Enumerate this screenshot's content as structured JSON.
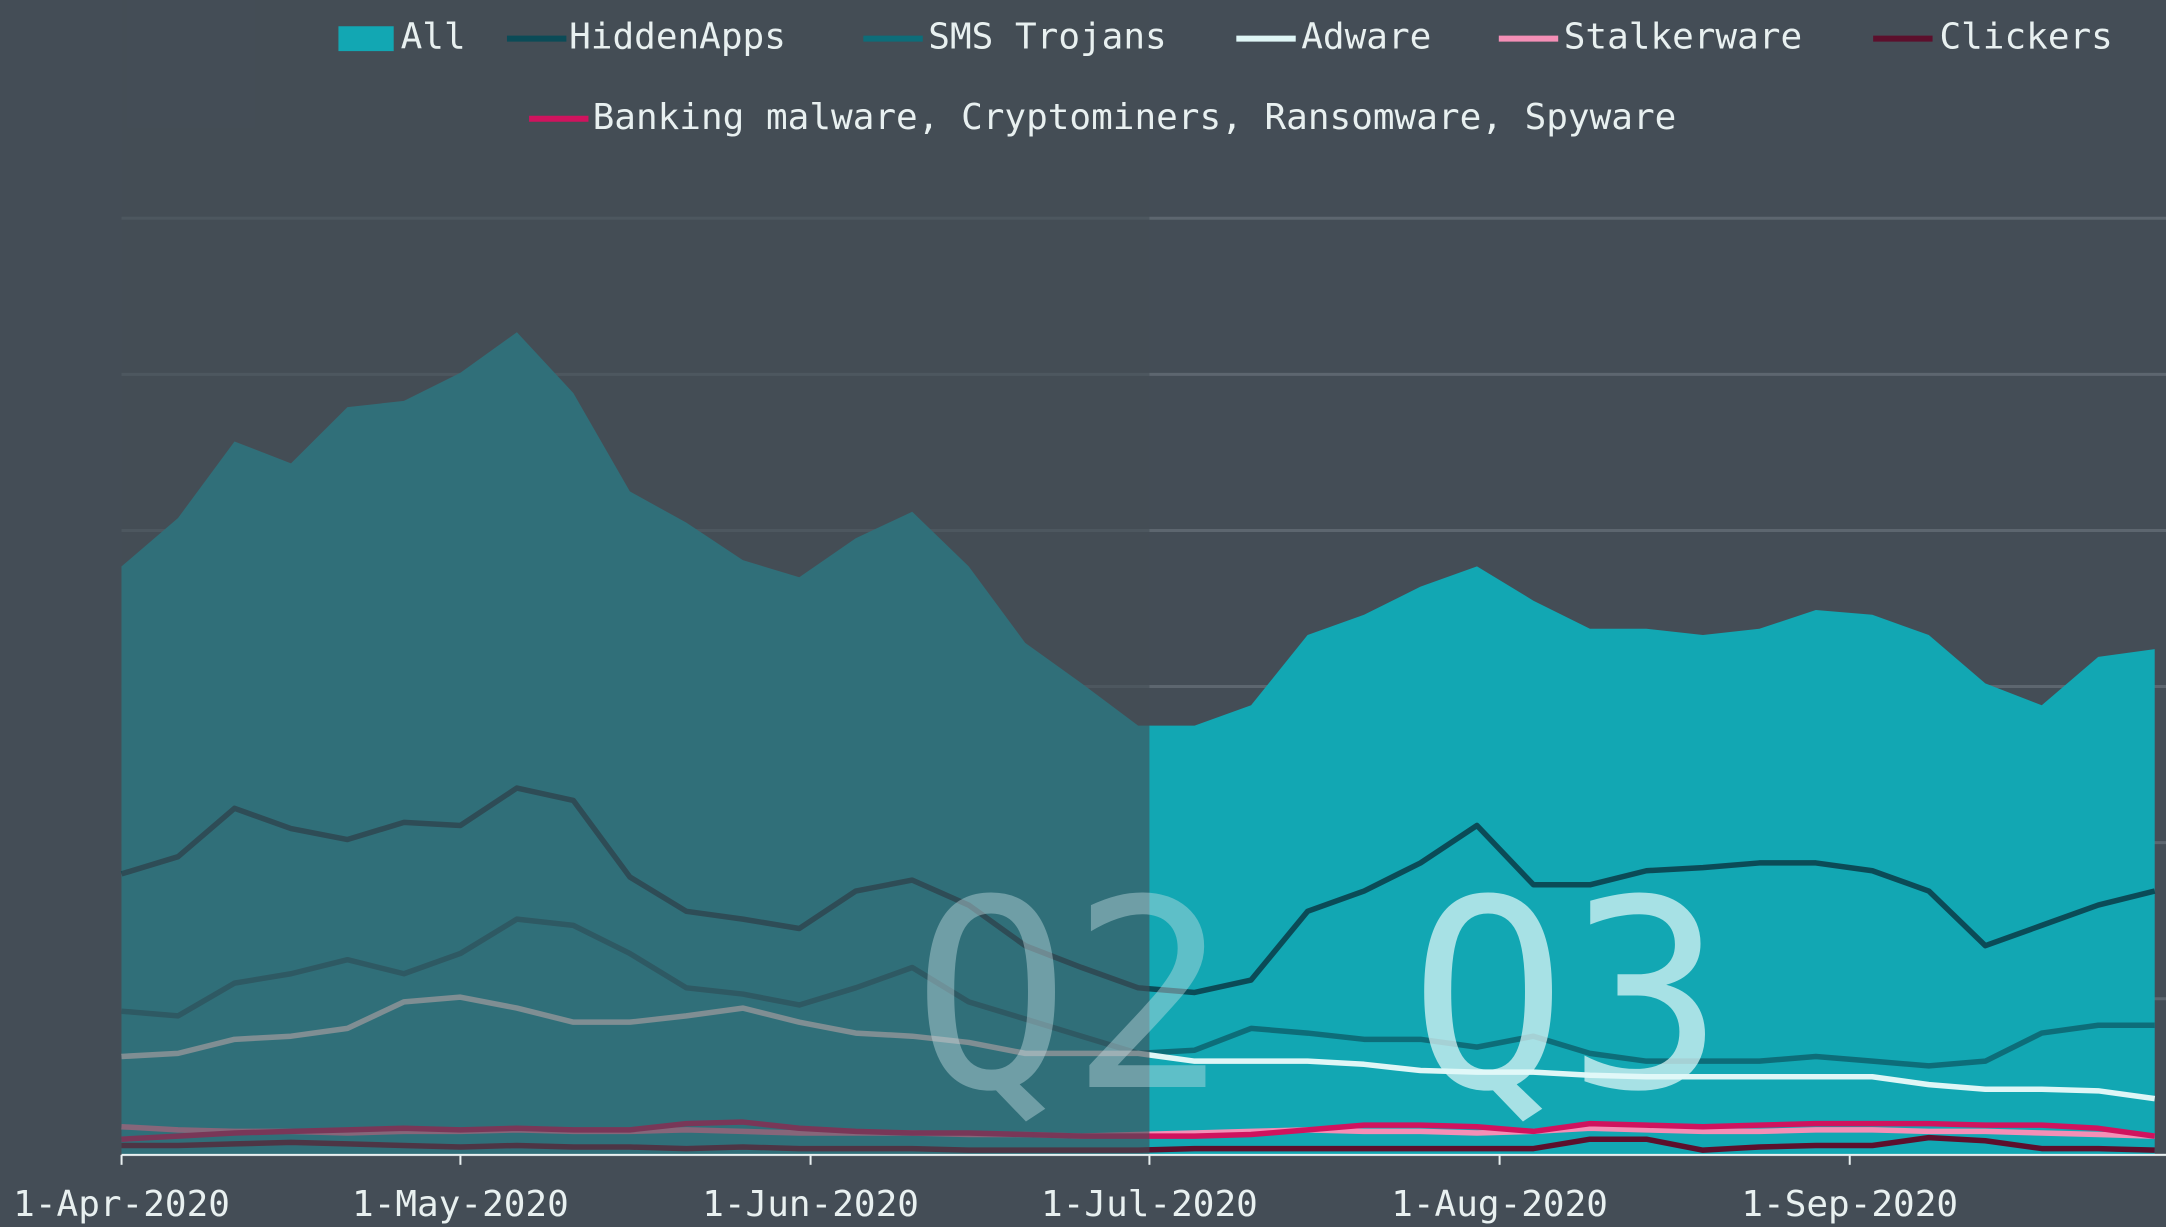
{
  "chart_data": {
    "type": "area",
    "x": [
      "2020-04-01",
      "2020-04-06",
      "2020-04-11",
      "2020-04-16",
      "2020-04-21",
      "2020-04-26",
      "2020-05-01",
      "2020-05-06",
      "2020-05-11",
      "2020-05-16",
      "2020-05-21",
      "2020-05-26",
      "2020-05-31",
      "2020-06-05",
      "2020-06-10",
      "2020-06-15",
      "2020-06-20",
      "2020-06-25",
      "2020-06-30",
      "2020-07-05",
      "2020-07-10",
      "2020-07-15",
      "2020-07-20",
      "2020-07-25",
      "2020-07-30",
      "2020-08-04",
      "2020-08-09",
      "2020-08-14",
      "2020-08-19",
      "2020-08-24",
      "2020-08-29",
      "2020-09-03",
      "2020-09-08",
      "2020-09-13",
      "2020-09-18",
      "2020-09-23",
      "2020-09-28"
    ],
    "xlim": [
      "2020-04-01",
      "2020-09-29"
    ],
    "xticks": [
      {
        "value": "2020-04-01",
        "label": "1-Apr-2020"
      },
      {
        "value": "2020-05-01",
        "label": "1-May-2020"
      },
      {
        "value": "2020-06-01",
        "label": "1-Jun-2020"
      },
      {
        "value": "2020-07-01",
        "label": "1-Jul-2020"
      },
      {
        "value": "2020-08-01",
        "label": "1-Aug-2020"
      },
      {
        "value": "2020-09-01",
        "label": "1-Sep-2020"
      }
    ],
    "ylim": [
      0,
      6
    ],
    "yticks": [
      0,
      1,
      2,
      3,
      4,
      5,
      6
    ],
    "grid": true,
    "series": [
      {
        "name": "All",
        "color": "#12a7b3",
        "area": true,
        "values": [
          3.77,
          4.08,
          4.57,
          4.43,
          4.79,
          4.83,
          5.01,
          5.27,
          4.88,
          4.25,
          4.05,
          3.81,
          3.7,
          3.95,
          4.12,
          3.77,
          3.28,
          3.02,
          2.75,
          2.75,
          2.88,
          3.33,
          3.46,
          3.64,
          3.77,
          3.55,
          3.37,
          3.37,
          3.33,
          3.37,
          3.49,
          3.46,
          3.33,
          3.02,
          2.88,
          3.19,
          3.24
        ]
      },
      {
        "name": "HiddenApps",
        "color": "#0b4b57",
        "values": [
          1.8,
          1.91,
          2.22,
          2.09,
          2.02,
          2.13,
          2.11,
          2.35,
          2.27,
          1.78,
          1.56,
          1.51,
          1.45,
          1.69,
          1.76,
          1.6,
          1.34,
          1.2,
          1.07,
          1.04,
          1.12,
          1.56,
          1.69,
          1.87,
          2.11,
          1.73,
          1.73,
          1.82,
          1.84,
          1.87,
          1.87,
          1.82,
          1.69,
          1.34,
          1.47,
          1.6,
          1.69
        ]
      },
      {
        "name": "SMS Trojans",
        "color": "#0d6d79",
        "values": [
          0.92,
          0.89,
          1.1,
          1.16,
          1.25,
          1.16,
          1.29,
          1.51,
          1.47,
          1.29,
          1.07,
          1.03,
          0.96,
          1.07,
          1.2,
          0.98,
          0.87,
          0.76,
          0.65,
          0.67,
          0.81,
          0.78,
          0.74,
          0.74,
          0.69,
          0.76,
          0.65,
          0.6,
          0.6,
          0.6,
          0.63,
          0.6,
          0.57,
          0.6,
          0.78,
          0.83,
          0.83
        ]
      },
      {
        "name": "Adware",
        "color": "#dff6f6",
        "values": [
          0.63,
          0.65,
          0.74,
          0.76,
          0.81,
          0.98,
          1.01,
          0.94,
          0.85,
          0.85,
          0.89,
          0.94,
          0.85,
          0.78,
          0.76,
          0.72,
          0.65,
          0.65,
          0.65,
          0.6,
          0.6,
          0.6,
          0.58,
          0.54,
          0.53,
          0.53,
          0.51,
          0.5,
          0.5,
          0.5,
          0.5,
          0.5,
          0.45,
          0.42,
          0.42,
          0.41,
          0.36
        ]
      },
      {
        "name": "Stalkerware",
        "color": "#f48fb6",
        "values": [
          0.18,
          0.16,
          0.15,
          0.15,
          0.14,
          0.15,
          0.15,
          0.16,
          0.15,
          0.15,
          0.16,
          0.15,
          0.14,
          0.14,
          0.14,
          0.13,
          0.13,
          0.12,
          0.13,
          0.14,
          0.15,
          0.16,
          0.15,
          0.15,
          0.14,
          0.15,
          0.17,
          0.16,
          0.15,
          0.15,
          0.16,
          0.16,
          0.15,
          0.15,
          0.14,
          0.13,
          0.12
        ]
      },
      {
        "name": "Clickers",
        "color": "#5c0f2c",
        "values": [
          0.06,
          0.06,
          0.07,
          0.08,
          0.07,
          0.06,
          0.05,
          0.06,
          0.05,
          0.05,
          0.04,
          0.05,
          0.04,
          0.04,
          0.04,
          0.03,
          0.03,
          0.03,
          0.03,
          0.04,
          0.04,
          0.04,
          0.04,
          0.04,
          0.04,
          0.04,
          0.1,
          0.1,
          0.03,
          0.05,
          0.06,
          0.06,
          0.11,
          0.09,
          0.04,
          0.04,
          0.03
        ]
      },
      {
        "name": "Banking malware, Cryptominers, Ransomware, Spyware",
        "color": "#d0135e",
        "values": [
          0.1,
          0.12,
          0.14,
          0.15,
          0.16,
          0.17,
          0.16,
          0.17,
          0.16,
          0.16,
          0.2,
          0.21,
          0.17,
          0.15,
          0.14,
          0.14,
          0.13,
          0.12,
          0.12,
          0.12,
          0.13,
          0.16,
          0.19,
          0.19,
          0.18,
          0.15,
          0.2,
          0.19,
          0.18,
          0.19,
          0.2,
          0.2,
          0.2,
          0.19,
          0.19,
          0.17,
          0.12
        ]
      }
    ],
    "shade": [
      "2020-04-01",
      "2020-07-01"
    ],
    "annotations": [
      {
        "text": "Q2",
        "x": "2020-06-10"
      },
      {
        "text": "Q3",
        "x": "2020-07-24"
      }
    ]
  }
}
